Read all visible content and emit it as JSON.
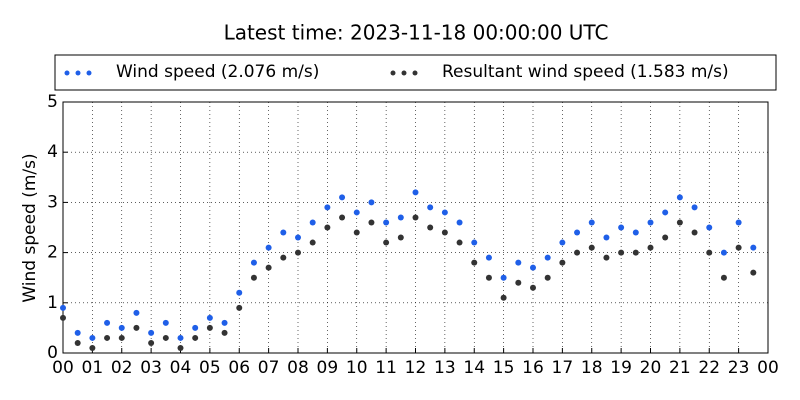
{
  "chart_data": {
    "type": "scatter",
    "title": "Latest time: 2023-11-18 00:00:00 UTC",
    "ylabel": "Wind speed (m/s)",
    "xlim": [
      0,
      24
    ],
    "ylim": [
      0,
      5
    ],
    "yticks": [
      0,
      1,
      2,
      3,
      4,
      5
    ],
    "xticks": [
      {
        "value": 0,
        "label": "00"
      },
      {
        "value": 1,
        "label": "01"
      },
      {
        "value": 2,
        "label": "02"
      },
      {
        "value": 3,
        "label": "03"
      },
      {
        "value": 4,
        "label": "04"
      },
      {
        "value": 5,
        "label": "05"
      },
      {
        "value": 6,
        "label": "06"
      },
      {
        "value": 7,
        "label": "07"
      },
      {
        "value": 8,
        "label": "08"
      },
      {
        "value": 9,
        "label": "09"
      },
      {
        "value": 10,
        "label": "10"
      },
      {
        "value": 11,
        "label": "11"
      },
      {
        "value": 12,
        "label": "12"
      },
      {
        "value": 13,
        "label": "13"
      },
      {
        "value": 14,
        "label": "14"
      },
      {
        "value": 15,
        "label": "15"
      },
      {
        "value": 16,
        "label": "16"
      },
      {
        "value": 17,
        "label": "17"
      },
      {
        "value": 18,
        "label": "18"
      },
      {
        "value": 19,
        "label": "19"
      },
      {
        "value": 20,
        "label": "20"
      },
      {
        "value": 21,
        "label": "21"
      },
      {
        "value": 22,
        "label": "22"
      },
      {
        "value": 23,
        "label": "23"
      },
      {
        "value": 24,
        "label": "00"
      }
    ],
    "grid": true,
    "x": [
      0,
      0.5,
      1,
      1.5,
      2,
      2.5,
      3,
      3.5,
      4,
      4.5,
      5,
      5.5,
      6,
      6.5,
      7,
      7.5,
      8,
      8.5,
      9,
      9.5,
      10,
      10.5,
      11,
      11.5,
      12,
      12.5,
      13,
      13.5,
      14,
      14.5,
      15,
      15.5,
      16,
      16.5,
      17,
      17.5,
      18,
      18.5,
      19,
      19.5,
      20,
      20.5,
      21,
      21.5,
      22,
      22.5,
      23,
      23.5
    ],
    "series": [
      {
        "name": "Wind speed (2.076 m/s)",
        "color": "#1f5fe8",
        "values": [
          0.9,
          0.4,
          0.3,
          0.6,
          0.5,
          0.8,
          0.4,
          0.6,
          0.3,
          0.5,
          0.7,
          0.6,
          1.2,
          1.8,
          2.1,
          2.4,
          2.3,
          2.6,
          2.9,
          3.1,
          2.8,
          3.0,
          2.6,
          2.7,
          3.2,
          2.9,
          2.8,
          2.6,
          2.2,
          1.9,
          1.5,
          1.8,
          1.7,
          1.9,
          2.2,
          2.4,
          2.6,
          2.3,
          2.5,
          2.4,
          2.6,
          2.8,
          3.1,
          2.9,
          2.5,
          2.0,
          2.6,
          2.1
        ]
      },
      {
        "name": "Resultant wind speed (1.583 m/s)",
        "color": "#333333",
        "values": [
          0.7,
          0.2,
          0.1,
          0.3,
          0.3,
          0.5,
          0.2,
          0.3,
          0.1,
          0.3,
          0.5,
          0.4,
          0.9,
          1.5,
          1.7,
          1.9,
          2.0,
          2.2,
          2.5,
          2.7,
          2.4,
          2.6,
          2.2,
          2.3,
          2.7,
          2.5,
          2.4,
          2.2,
          1.8,
          1.5,
          1.1,
          1.4,
          1.3,
          1.5,
          1.8,
          2.0,
          2.1,
          1.9,
          2.0,
          2.0,
          2.1,
          2.3,
          2.6,
          2.4,
          2.0,
          1.5,
          2.1,
          1.6
        ]
      }
    ]
  }
}
